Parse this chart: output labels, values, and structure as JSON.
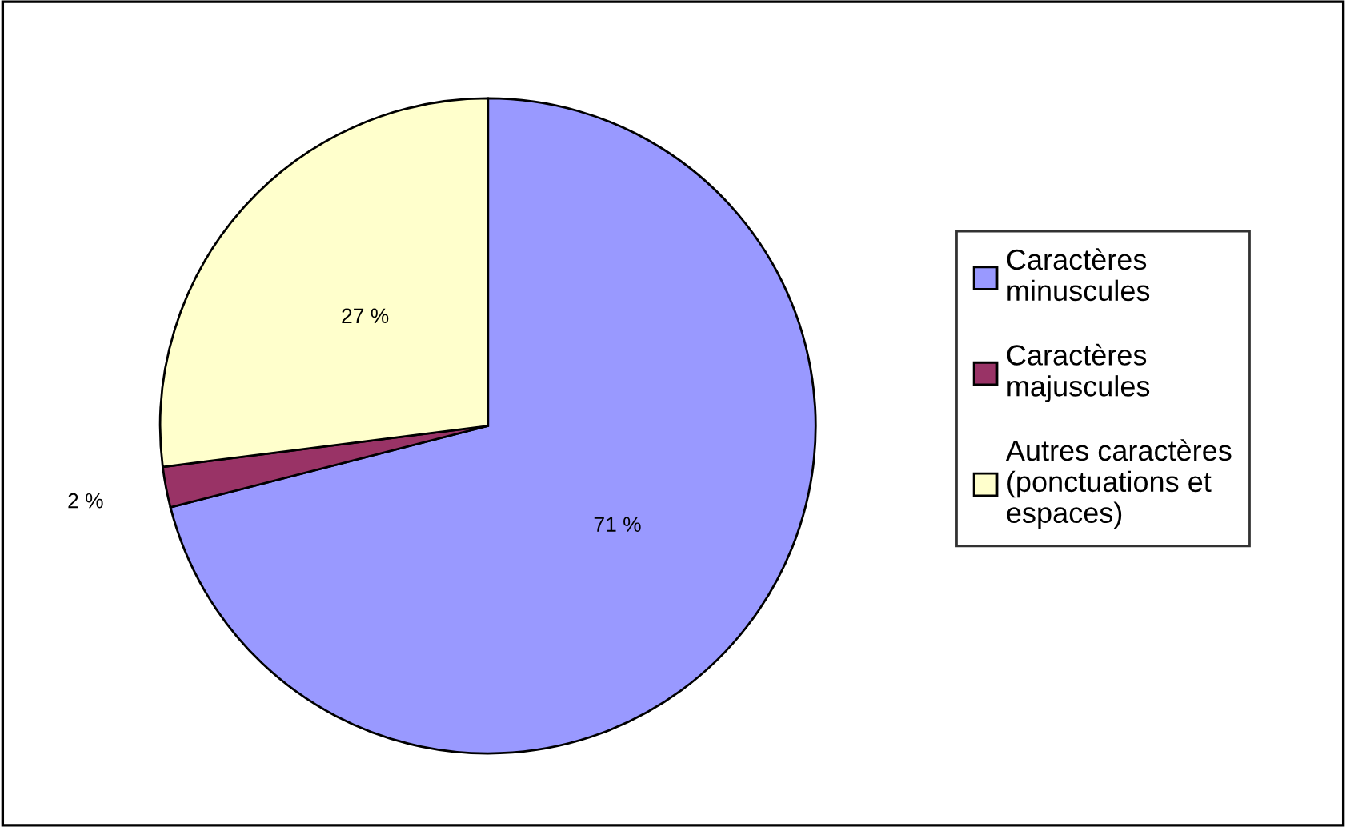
{
  "chart_data": {
    "type": "pie",
    "categories": [
      "Caractères\nminuscules",
      "Caractères\nmajuscules",
      "Autres caractères\n(ponctuations et\nespaces)"
    ],
    "values": [
      71,
      2,
      27
    ],
    "colors": [
      "#9999ff",
      "#993366",
      "#ffffcc"
    ],
    "value_labels": [
      "71 %",
      "2 %",
      "27 %"
    ],
    "legend": "right"
  }
}
